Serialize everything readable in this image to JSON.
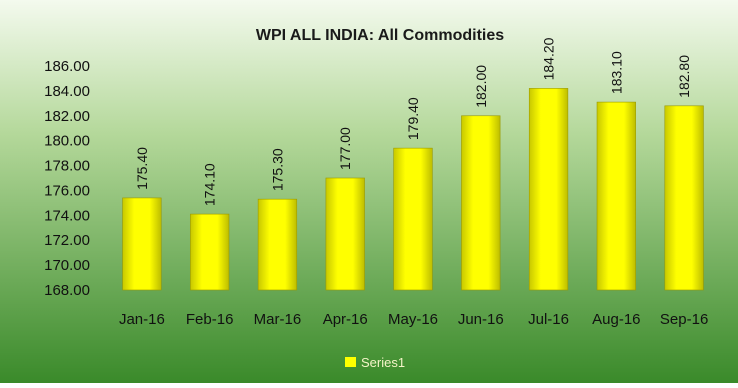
{
  "chart_data": {
    "type": "bar",
    "title": "WPI ALL INDIA: All Commodities",
    "xlabel": "",
    "ylabel": "",
    "categories": [
      "Jan-16",
      "Feb-16",
      "Mar-16",
      "Apr-16",
      "May-16",
      "Jun-16",
      "Jul-16",
      "Aug-16",
      "Sep-16"
    ],
    "series": [
      {
        "name": "Series1",
        "values": [
          175.4,
          174.1,
          175.3,
          177.0,
          179.4,
          182.0,
          184.2,
          183.1,
          182.8
        ],
        "labels": [
          "175.40",
          "174.10",
          "175.30",
          "177.00",
          "179.40",
          "182.00",
          "184.20",
          "183.10",
          "182.80"
        ],
        "color": "#ffff00"
      }
    ],
    "ylim": [
      168,
      186
    ],
    "yticks": [
      168,
      170,
      172,
      174,
      176,
      178,
      180,
      182,
      184,
      186
    ],
    "ytick_labels": [
      "168.00",
      "170.00",
      "172.00",
      "174.00",
      "176.00",
      "178.00",
      "180.00",
      "182.00",
      "184.00",
      "186.00"
    ],
    "grid": false,
    "legend": "bottom",
    "background": {
      "top": "#f4faee",
      "bottom": "#3a8a2a"
    },
    "data_label_orientation": "vertical"
  }
}
